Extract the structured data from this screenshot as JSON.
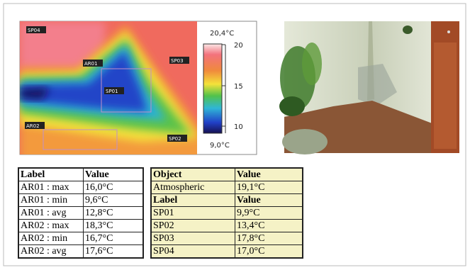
{
  "thermal_image": {
    "labels": [
      "SP04",
      "AR01",
      "SP03",
      "SP01",
      "AR02",
      "SP02"
    ],
    "max_label": "20,4°C",
    "min_label": "9,0°C",
    "scale_ticks": [
      20,
      15,
      10
    ]
  },
  "table_areas": {
    "header": [
      "Label",
      "Value"
    ],
    "rows": [
      [
        "AR01 : max",
        "16,0°C"
      ],
      [
        "AR01 : min",
        "9,6°C"
      ],
      [
        "AR01 : avg",
        "12,8°C"
      ],
      [
        "AR02 : max",
        "18,3°C"
      ],
      [
        "AR02 : min",
        "16,7°C"
      ],
      [
        "AR02 : avg",
        "17,6°C"
      ]
    ]
  },
  "table_spots": {
    "object_header": [
      "Object",
      "Value"
    ],
    "object_rows": [
      [
        "Atmospheric",
        "19,1°C"
      ]
    ],
    "label_header": [
      "Label",
      "Value"
    ],
    "rows": [
      [
        "SP01",
        "9,9°C"
      ],
      [
        "SP02",
        "13,4°C"
      ],
      [
        "SP03",
        "17,8°C"
      ],
      [
        "SP04",
        "17,0°C"
      ]
    ]
  }
}
